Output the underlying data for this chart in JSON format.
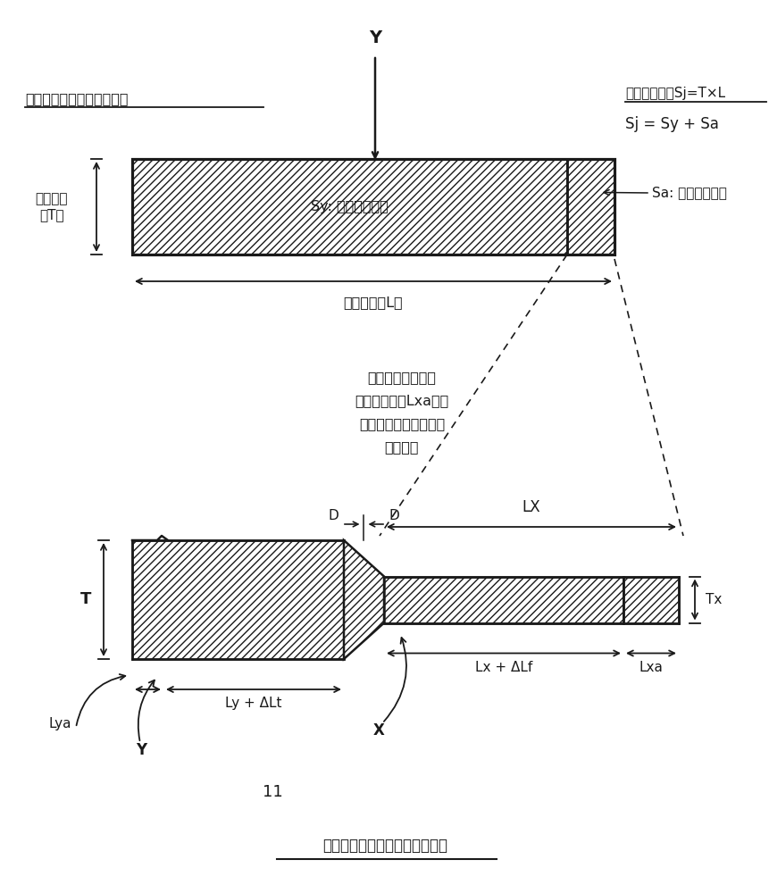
{
  "bg_color": "#ffffff",
  "title_top": "一次轧制后的厚壁部的形状",
  "title_bottom": "二次轧制后的不均厚钢板的形状",
  "text_right_title": "实际侧截面积Sj=T×L",
  "text_right_sub": "Sj = Sy + Sa",
  "text_sy": "Sy: 预定侧截面积",
  "text_sa": "Sa: 剩余侧截面积",
  "text_thickness_label1": "实际厚度",
  "text_thickness_label2": "（T）",
  "text_length_label": "实际长度（L）",
  "text_middle_line1": "根据运算出的薄壁",
  "text_middle_line2": "部的富余长度Lxa来向",
  "text_middle_line3": "厚壁部以及薄壁部分配",
  "text_middle_line4": "剩余面积",
  "label_Y_top": "Y",
  "label_T": "T",
  "label_Tx": "Tx",
  "label_D": "D",
  "label_LX": "LX",
  "label_Ly_dLt": "Ly + ΔLt",
  "label_Lx_dLf": "Lx + ΔLf",
  "label_Lxa": "Lxa",
  "label_Lya": "Lya",
  "label_Y": "Y",
  "label_X": "X",
  "label_11": "11"
}
